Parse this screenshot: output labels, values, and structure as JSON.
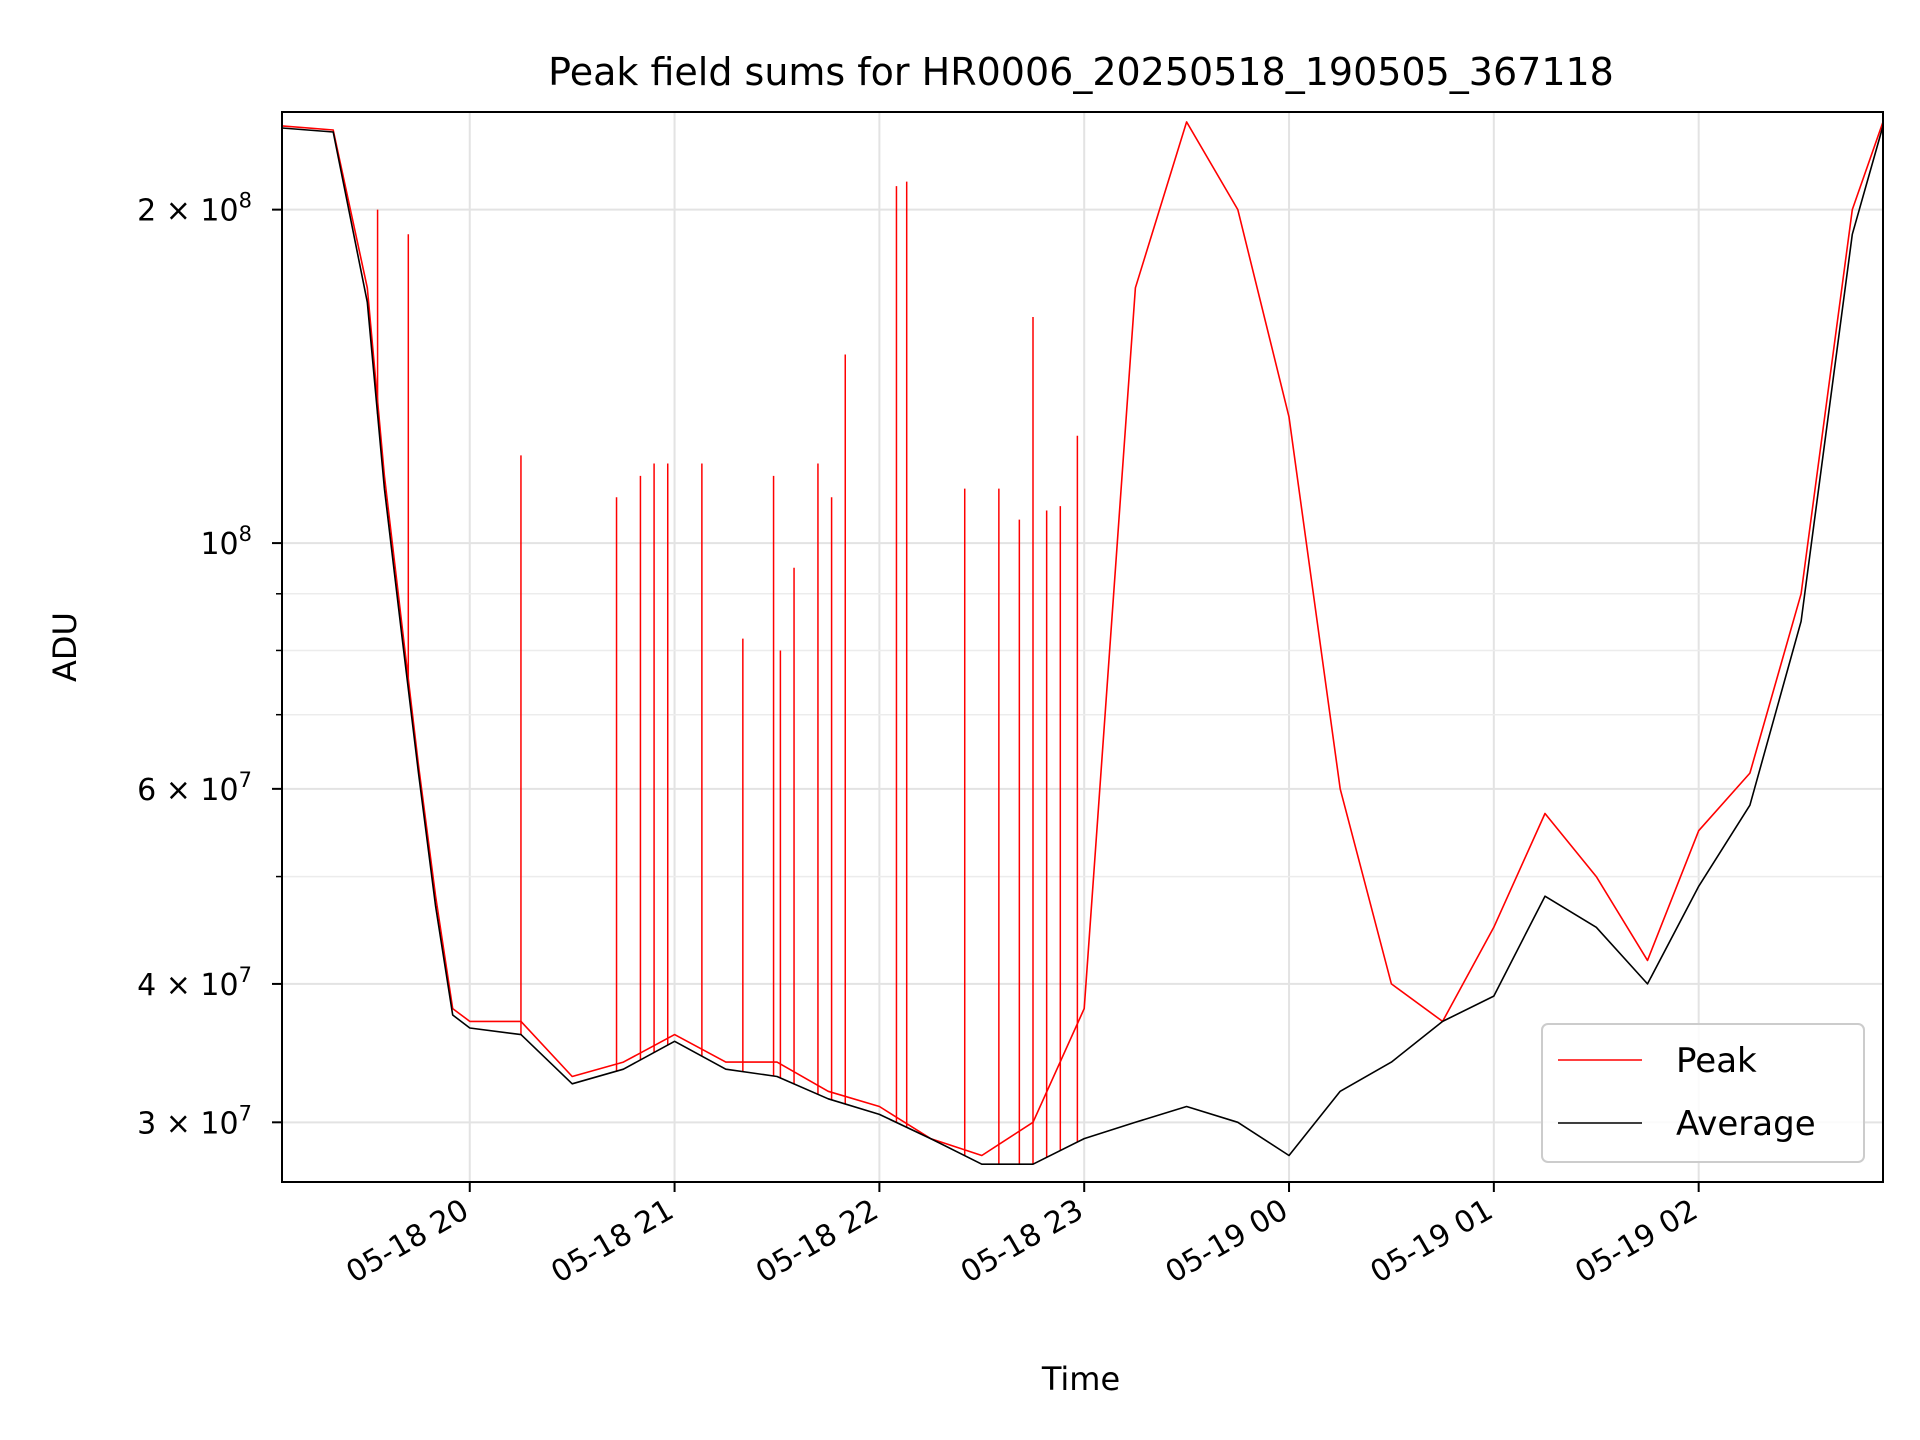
{
  "chart_data": {
    "type": "line",
    "title": "Peak field sums for HR0006_20250518_190505_367118",
    "xlabel": "Time",
    "ylabel": "ADU",
    "yscale": "log",
    "ylim": [
      26500000,
      245000000
    ],
    "xlim": [
      "2025-05-18 19:05",
      "2025-05-19 02:54"
    ],
    "grid": true,
    "legend_placement": "lower-right",
    "x_ticks": [
      {
        "t": "2025-05-18 20:00",
        "label": "05-18 20"
      },
      {
        "t": "2025-05-18 21:00",
        "label": "05-18 21"
      },
      {
        "t": "2025-05-18 22:00",
        "label": "05-18 22"
      },
      {
        "t": "2025-05-18 23:00",
        "label": "05-18 23"
      },
      {
        "t": "2025-05-19 00:00",
        "label": "05-19 00"
      },
      {
        "t": "2025-05-19 01:00",
        "label": "05-19 01"
      },
      {
        "t": "2025-05-19 02:00",
        "label": "05-19 02"
      }
    ],
    "y_major_ticks": [
      {
        "value": 30000000,
        "mantissa": "3",
        "exponent": "7"
      },
      {
        "value": 40000000,
        "mantissa": "4",
        "exponent": "7"
      },
      {
        "value": 60000000,
        "mantissa": "6",
        "exponent": "7"
      },
      {
        "value": 100000000,
        "mantissa": "",
        "exponent": "8"
      },
      {
        "value": 200000000,
        "mantissa": "2",
        "exponent": "8"
      }
    ],
    "y_minor_ticks": [
      50000000,
      70000000,
      80000000,
      90000000
    ],
    "series": [
      {
        "name": "Peak",
        "color": "#ff0000",
        "x": [
          "2025-05-18 19:05",
          "2025-05-18 19:20",
          "2025-05-18 19:30",
          "2025-05-18 19:35",
          "2025-05-18 19:40",
          "2025-05-18 19:45",
          "2025-05-18 19:50",
          "2025-05-18 19:55",
          "2025-05-18 20:00",
          "2025-05-18 20:15",
          "2025-05-18 20:30",
          "2025-05-18 20:45",
          "2025-05-18 21:00",
          "2025-05-18 21:15",
          "2025-05-18 21:30",
          "2025-05-18 21:45",
          "2025-05-18 22:00",
          "2025-05-18 22:15",
          "2025-05-18 22:30",
          "2025-05-18 22:45",
          "2025-05-18 23:00",
          "2025-05-18 23:15",
          "2025-05-18 23:30",
          "2025-05-18 23:45",
          "2025-05-19 00:00",
          "2025-05-19 00:15",
          "2025-05-19 00:30",
          "2025-05-19 00:45",
          "2025-05-19 01:00",
          "2025-05-19 01:15",
          "2025-05-19 01:30",
          "2025-05-19 01:45",
          "2025-05-19 02:00",
          "2025-05-19 02:15",
          "2025-05-19 02:30",
          "2025-05-19 02:45",
          "2025-05-19 02:54"
        ],
        "values": [
          238000000,
          236000000,
          170000000,
          115000000,
          85000000,
          63000000,
          48000000,
          38000000,
          37000000,
          37000000,
          33000000,
          34000000,
          36000000,
          34000000,
          34000000,
          32000000,
          31000000,
          29000000,
          28000000,
          30000000,
          38000000,
          170000000,
          240000000,
          200000000,
          130000000,
          60000000,
          40000000,
          37000000,
          45000000,
          57000000,
          50000000,
          42000000,
          55000000,
          62000000,
          90000000,
          200000000,
          240000000
        ],
        "spikes": [
          [
            "2025-05-18 19:33",
            200000000
          ],
          [
            "2025-05-18 19:42",
            190000000
          ],
          [
            "2025-05-18 20:15",
            120000000
          ],
          [
            "2025-05-18 20:43",
            110000000
          ],
          [
            "2025-05-18 20:50",
            115000000
          ],
          [
            "2025-05-18 20:54",
            118000000
          ],
          [
            "2025-05-18 20:58",
            118000000
          ],
          [
            "2025-05-18 21:08",
            118000000
          ],
          [
            "2025-05-18 21:20",
            82000000
          ],
          [
            "2025-05-18 21:29",
            115000000
          ],
          [
            "2025-05-18 21:31",
            80000000
          ],
          [
            "2025-05-18 21:35",
            95000000
          ],
          [
            "2025-05-18 21:42",
            118000000
          ],
          [
            "2025-05-18 21:46",
            110000000
          ],
          [
            "2025-05-18 21:50",
            148000000
          ],
          [
            "2025-05-18 22:05",
            210000000
          ],
          [
            "2025-05-18 22:08",
            212000000
          ],
          [
            "2025-05-18 22:25",
            112000000
          ],
          [
            "2025-05-18 22:35",
            112000000
          ],
          [
            "2025-05-18 22:41",
            105000000
          ],
          [
            "2025-05-18 22:45",
            160000000
          ],
          [
            "2025-05-18 22:49",
            107000000
          ],
          [
            "2025-05-18 22:53",
            108000000
          ],
          [
            "2025-05-18 22:58",
            125000000
          ]
        ]
      },
      {
        "name": "Average",
        "color": "#000000",
        "x": [
          "2025-05-18 19:05",
          "2025-05-18 19:20",
          "2025-05-18 19:30",
          "2025-05-18 19:35",
          "2025-05-18 19:40",
          "2025-05-18 19:45",
          "2025-05-18 19:50",
          "2025-05-18 19:55",
          "2025-05-18 20:00",
          "2025-05-18 20:15",
          "2025-05-18 20:30",
          "2025-05-18 20:45",
          "2025-05-18 21:00",
          "2025-05-18 21:15",
          "2025-05-18 21:30",
          "2025-05-18 21:45",
          "2025-05-18 22:00",
          "2025-05-18 22:15",
          "2025-05-18 22:30",
          "2025-05-18 22:45",
          "2025-05-18 23:00",
          "2025-05-18 23:15",
          "2025-05-18 23:30",
          "2025-05-18 23:45",
          "2025-05-19 00:00",
          "2025-05-19 00:15",
          "2025-05-19 00:30",
          "2025-05-19 00:45",
          "2025-05-19 01:00",
          "2025-05-19 01:15",
          "2025-05-19 01:30",
          "2025-05-19 01:45",
          "2025-05-19 02:00",
          "2025-05-19 02:15",
          "2025-05-19 02:30",
          "2025-05-19 02:45",
          "2025-05-19 02:54"
        ],
        "values": [
          237000000,
          235000000,
          165000000,
          112000000,
          83000000,
          62000000,
          47000000,
          37500000,
          36500000,
          36000000,
          32500000,
          33500000,
          35500000,
          33500000,
          33000000,
          31500000,
          30500000,
          29000000,
          27500000,
          27500000,
          29000000,
          30000000,
          31000000,
          30000000,
          28000000,
          32000000,
          34000000,
          37000000,
          39000000,
          48000000,
          45000000,
          40000000,
          49000000,
          58000000,
          85000000,
          190000000,
          238000000
        ]
      }
    ]
  },
  "legend": [
    {
      "label": "Peak",
      "color": "#ff0000"
    },
    {
      "label": "Average",
      "color": "#000000"
    }
  ]
}
